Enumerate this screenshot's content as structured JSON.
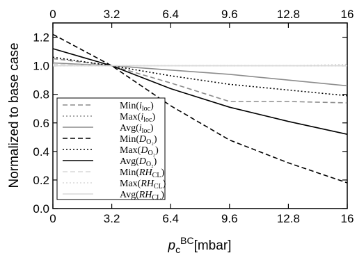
{
  "chart_data": {
    "type": "line",
    "title": "",
    "xlabel": "p_c^BC [mbar]",
    "xlabel_parts": {
      "main": "p",
      "sub": "c",
      "sup": "BC",
      "unit": "[mbar]"
    },
    "ylabel": "Normalized to base case",
    "xlim": [
      0,
      16
    ],
    "ylim": [
      0,
      1.3
    ],
    "x_ticks": [
      0,
      3.2,
      6.4,
      9.6,
      12.8,
      16
    ],
    "x_tick_labels": [
      "0",
      "3.2",
      "6.4",
      "9.6",
      "12.8",
      "16"
    ],
    "top_tick_labels": [
      "0",
      "3.2",
      "6.4",
      "9.6",
      "12.8",
      "16"
    ],
    "y_ticks": [
      0.0,
      0.2,
      0.4,
      0.6,
      0.8,
      1.0,
      1.2
    ],
    "y_tick_labels": [
      "0.0",
      "0.2",
      "0.4",
      "0.6",
      "0.8",
      "1.0",
      "1.2"
    ],
    "grid": false,
    "legend_position": "bottom-left",
    "x": [
      0,
      3.2,
      6.4,
      9.6,
      12.8,
      16
    ],
    "series": [
      {
        "name": "Min(i_loc)",
        "label": {
          "fn": "Min",
          "main": "i",
          "sub": "loc"
        },
        "color": "#8c8c8c",
        "dash": "dashed",
        "values": [
          1.05,
          1.0,
          0.88,
          0.75,
          0.75,
          0.74
        ]
      },
      {
        "name": "Max(i_loc)",
        "label": {
          "fn": "Max",
          "main": "i",
          "sub": "loc"
        },
        "color": "#8c8c8c",
        "dash": "dotted",
        "values": [
          1.0,
          1.0,
          1.0,
          1.0,
          1.0,
          1.0
        ]
      },
      {
        "name": "Avg(i_loc)",
        "label": {
          "fn": "Avg",
          "main": "i",
          "sub": "loc"
        },
        "color": "#8c8c8c",
        "dash": "solid",
        "values": [
          1.02,
          1.0,
          0.97,
          0.94,
          0.9,
          0.86
        ]
      },
      {
        "name": "Min(D_O2)",
        "label": {
          "fn": "Min",
          "main": "D",
          "sub": "O₂"
        },
        "color": "#000000",
        "dash": "dashed",
        "values": [
          1.22,
          1.0,
          0.72,
          0.48,
          0.32,
          0.18
        ]
      },
      {
        "name": "Max(D_O2)",
        "label": {
          "fn": "Max",
          "main": "D",
          "sub": "O₂"
        },
        "color": "#000000",
        "dash": "dotted",
        "values": [
          1.06,
          1.0,
          0.93,
          0.87,
          0.83,
          0.79
        ]
      },
      {
        "name": "Avg(D_O2)",
        "label": {
          "fn": "Avg",
          "main": "D",
          "sub": "O₂"
        },
        "color": "#000000",
        "dash": "solid",
        "values": [
          1.12,
          1.0,
          0.84,
          0.71,
          0.61,
          0.52
        ]
      },
      {
        "name": "Min(RH_CL)",
        "label": {
          "fn": "Min",
          "main": "RH",
          "sub": "CL"
        },
        "color": "#d9d9d9",
        "dash": "dashed",
        "values": [
          1.01,
          1.0,
          1.0,
          1.0,
          1.0,
          1.0
        ]
      },
      {
        "name": "Max(RH_CL)",
        "label": {
          "fn": "Max",
          "main": "RH",
          "sub": "CL"
        },
        "color": "#d9d9d9",
        "dash": "dotted",
        "values": [
          1.0,
          1.0,
          1.0,
          1.0,
          1.0,
          1.01
        ]
      },
      {
        "name": "Avg(RH_CL)",
        "label": {
          "fn": "Avg",
          "main": "RH",
          "sub": "CL"
        },
        "color": "#d9d9d9",
        "dash": "solid",
        "values": [
          1.0,
          1.0,
          1.0,
          1.0,
          1.0,
          1.0
        ]
      }
    ]
  }
}
